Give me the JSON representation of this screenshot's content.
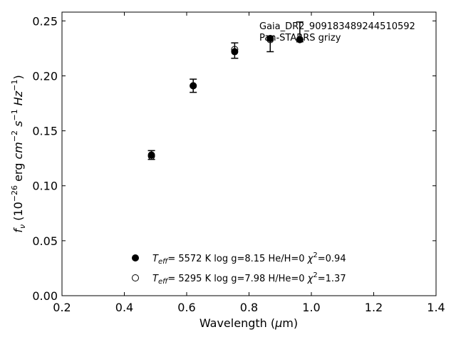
{
  "chart_data": {
    "type": "scatter",
    "xlabel": "Wavelength (μm)",
    "ylabel": "f_ν (10^-26 erg cm^-2 s^-1 Hz^-1)",
    "xlim": [
      0.2,
      1.4
    ],
    "ylim": [
      0.0,
      0.258
    ],
    "xticks": [
      "0.2",
      "0.4",
      "0.6",
      "0.8",
      "1.0",
      "1.2",
      "1.4"
    ],
    "yticks": [
      "0.00",
      "0.05",
      "0.10",
      "0.15",
      "0.20",
      "0.25"
    ],
    "annotation": [
      "Gaia_DR2_909183489244510592",
      "Pan-STARRS grizy"
    ],
    "series": [
      {
        "name": "Teff= 5572 K log g=8.15 He/H=0 χ²=0.94",
        "marker": "filled-circle",
        "points": [
          {
            "x": 0.487,
            "y": 0.128
          },
          {
            "x": 0.621,
            "y": 0.191
          },
          {
            "x": 0.754,
            "y": 0.222
          },
          {
            "x": 0.868,
            "y": 0.234
          },
          {
            "x": 0.963,
            "y": 0.233
          }
        ]
      },
      {
        "name": "Teff= 5295 K log g=7.98 H/He=0 χ²=1.37",
        "marker": "open-circle",
        "points": [
          {
            "x": 0.487,
            "y": 0.127
          },
          {
            "x": 0.621,
            "y": 0.191
          },
          {
            "x": 0.754,
            "y": 0.224
          },
          {
            "x": 0.868,
            "y": 0.233
          },
          {
            "x": 0.963,
            "y": 0.233
          }
        ]
      }
    ],
    "observed": {
      "points": [
        {
          "x": 0.487,
          "y": 0.128,
          "err": 0.004
        },
        {
          "x": 0.621,
          "y": 0.191,
          "err": 0.006
        },
        {
          "x": 0.754,
          "y": 0.223,
          "err": 0.007
        },
        {
          "x": 0.868,
          "y": 0.229,
          "err": 0.007
        },
        {
          "x": 0.963,
          "y": 0.24,
          "err": 0.009
        }
      ]
    },
    "legend": [
      {
        "teff": "5572 K",
        "logg": "log g=8.15",
        "comp": "He/H=0",
        "chi": "=0.94",
        "marker": "filled-circle"
      },
      {
        "teff": "5295 K",
        "logg": "log g=7.98",
        "comp": "H/He=0",
        "chi": "=1.37",
        "marker": "open-circle"
      }
    ],
    "legend_position": "bottom-center",
    "grid": false
  }
}
